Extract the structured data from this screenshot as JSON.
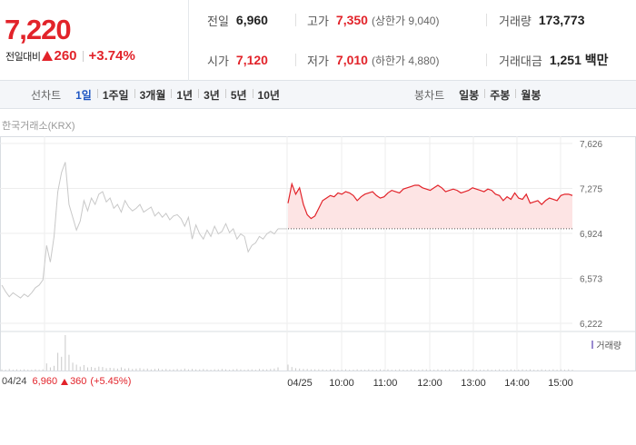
{
  "summary": {
    "price": "7,220",
    "change_label": "전일대비",
    "change_value": "260",
    "change_rate": "+3.74%",
    "prev_label": "전일",
    "prev_value": "6,960",
    "open_label": "시가",
    "open_value": "7,120",
    "high_label": "고가",
    "high_value": "7,350",
    "upper_limit": "(상한가 9,040)",
    "low_label": "저가",
    "low_value": "7,010",
    "lower_limit": "(하한가 4,880)",
    "volume_label": "거래량",
    "volume_value": "173,773",
    "amount_label": "거래대금",
    "amount_value": "1,251 백만"
  },
  "tabs": {
    "line_title": "선차트",
    "line_items": [
      "1일",
      "1주일",
      "3개월",
      "1년",
      "3년",
      "5년",
      "10년"
    ],
    "active": "1일",
    "candle_title": "봉차트",
    "candle_items": [
      "일봉",
      "주봉",
      "월봉"
    ]
  },
  "chart": {
    "market": "한국거래소(KRX)",
    "volume_legend": "거래량",
    "prev_day": {
      "date": "04/24",
      "close": "6,960",
      "change": "360",
      "rate": "(+5.45%)"
    }
  },
  "chart_data": {
    "type": "line",
    "y_ticks": [
      "7,626",
      "7,275",
      "6,924",
      "6,573",
      "6,222"
    ],
    "ylim": [
      6222,
      7626
    ],
    "x_labels": [
      "04/24",
      "04/25",
      "10:00",
      "11:00",
      "12:00",
      "13:00",
      "14:00",
      "15:00"
    ],
    "series": [
      {
        "values": [
          6520,
          6470,
          6430,
          6460,
          6440,
          6420,
          6450,
          6430,
          6460,
          6500,
          6520,
          6560,
          6830,
          6700,
          6900,
          7250,
          7400,
          7480,
          7150,
          7050,
          6950,
          7020,
          7180,
          7100,
          7200,
          7150,
          7230,
          7250,
          7170,
          7200,
          7120,
          7150,
          7090,
          7180,
          7130,
          7100,
          7120,
          7150,
          7090,
          7110,
          7130,
          7060,
          7090,
          7050,
          7080,
          7030,
          7060,
          7070,
          7040,
          6980,
          7050,
          6880,
          6990,
          6920,
          6880,
          6950,
          6900,
          6980,
          6920,
          6940,
          7000,
          6930,
          6960,
          6880,
          6920,
          6900,
          6780,
          6830,
          6850,
          6900,
          6880,
          6920,
          6940,
          6920,
          6960
        ]
      },
      {
        "values": [
          7160,
          7310,
          7230,
          7280,
          7150,
          7070,
          7040,
          7060,
          7120,
          7180,
          7200,
          7220,
          7210,
          7240,
          7230,
          7250,
          7240,
          7220,
          7180,
          7210,
          7230,
          7240,
          7250,
          7220,
          7200,
          7210,
          7240,
          7260,
          7250,
          7240,
          7270,
          7280,
          7290,
          7300,
          7300,
          7280,
          7270,
          7260,
          7280,
          7300,
          7280,
          7250,
          7260,
          7270,
          7260,
          7240,
          7250,
          7260,
          7280,
          7270,
          7260,
          7250,
          7270,
          7260,
          7230,
          7220,
          7180,
          7210,
          7190,
          7240,
          7200,
          7190,
          7230,
          7160,
          7170,
          7180,
          7150,
          7180,
          7200,
          7190,
          7180,
          7220,
          7230,
          7230,
          7220
        ]
      }
    ],
    "reference_price": 6960,
    "grid": true,
    "volume": {
      "day1": [
        3,
        2,
        4,
        2,
        3,
        2,
        3,
        2,
        2,
        3,
        2,
        3,
        18,
        8,
        12,
        45,
        35,
        90,
        40,
        20,
        15,
        10,
        14,
        8,
        9,
        7,
        10,
        9,
        6,
        7,
        6,
        5,
        8,
        5,
        6,
        4,
        5,
        6,
        4,
        5,
        3,
        4,
        5,
        3,
        4,
        3,
        3,
        4,
        3,
        5,
        3,
        4,
        3,
        3,
        4,
        3,
        2,
        3,
        3,
        4,
        3,
        2,
        3,
        4,
        3,
        2,
        3,
        3,
        2,
        4,
        3,
        3,
        4,
        5,
        8
      ],
      "day2": [
        15,
        9,
        6,
        5,
        4,
        4,
        3,
        3,
        3,
        3,
        2,
        3,
        3,
        2,
        2,
        3,
        2,
        2,
        3,
        2,
        2,
        3,
        2,
        2,
        3,
        2,
        3,
        2,
        2,
        3,
        2,
        2,
        3,
        2,
        2,
        3,
        3,
        2,
        2,
        3,
        2,
        2,
        3,
        2,
        2,
        3,
        2,
        2,
        3,
        2,
        2,
        2,
        3,
        2,
        2,
        3,
        2,
        2,
        3,
        2,
        2,
        3,
        2,
        3,
        2,
        2,
        3,
        2,
        2,
        3,
        2,
        3,
        2,
        3,
        2
      ]
    }
  }
}
